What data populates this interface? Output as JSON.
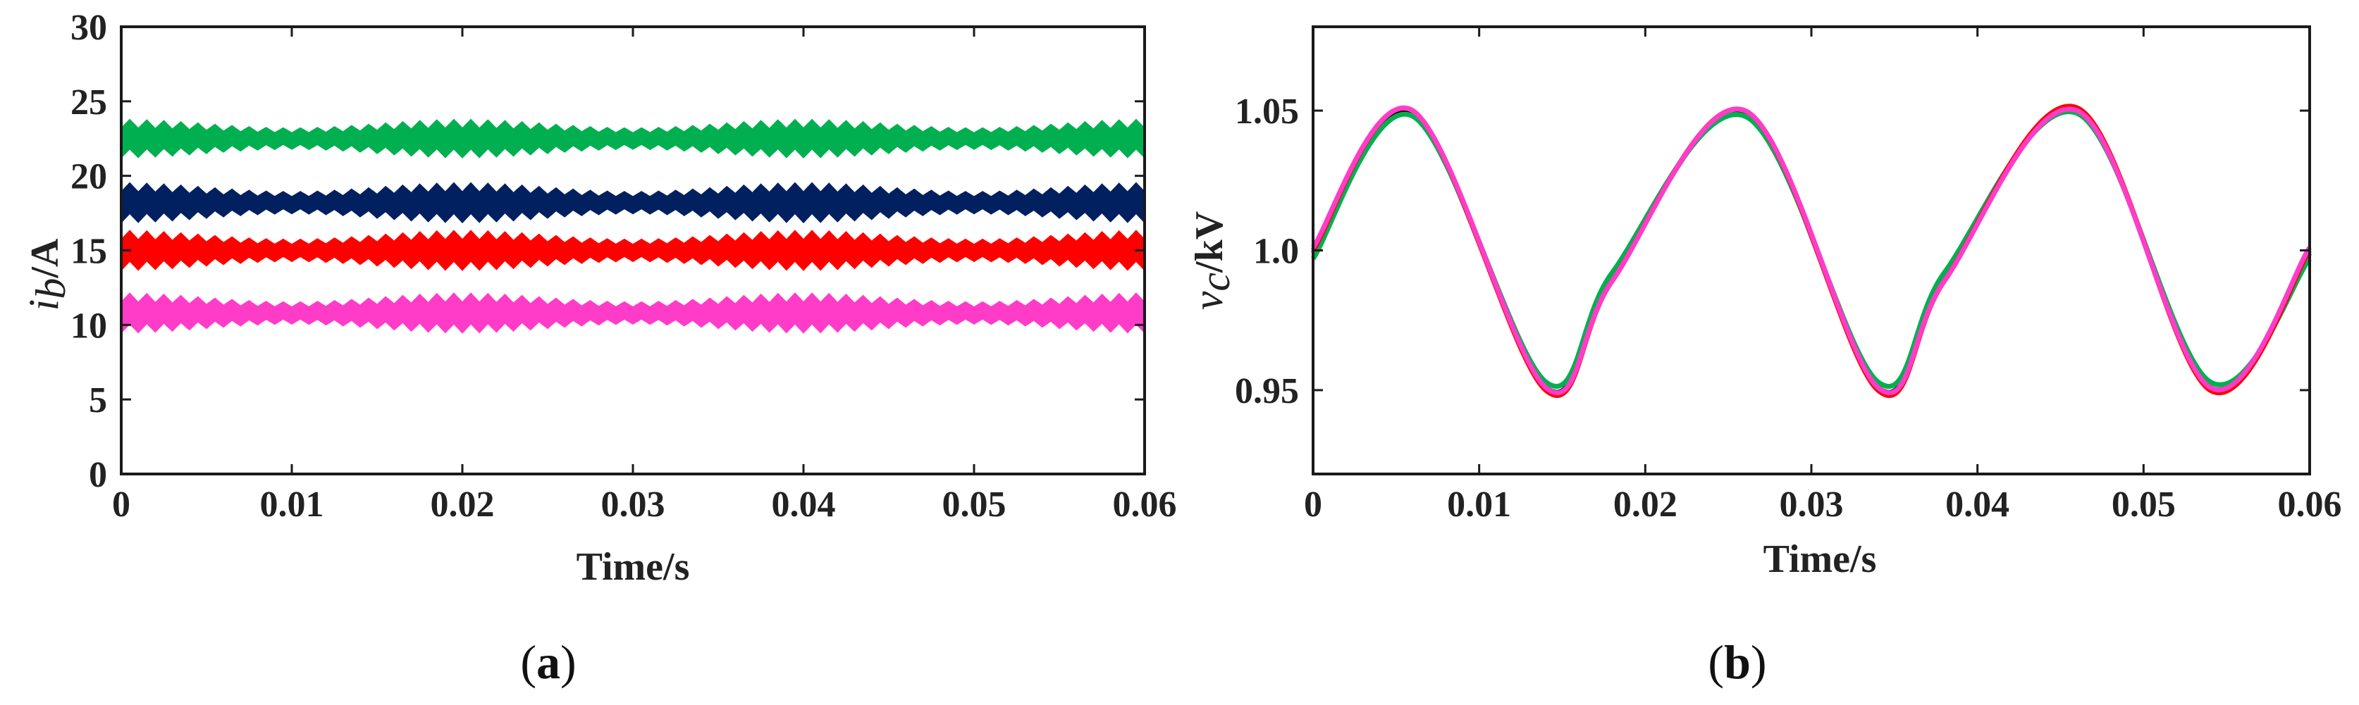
{
  "chart_data": [
    {
      "type": "line",
      "panel_label": "a",
      "ylabel_symbol": "i",
      "ylabel_subscript": "b",
      "ylabel_unit": "/A",
      "xlabel": "Time/s",
      "xlim": [
        0,
        0.06
      ],
      "ylim": [
        0,
        30
      ],
      "xticks": [
        0,
        0.01,
        0.02,
        0.03,
        0.04,
        0.05,
        0.06
      ],
      "xtick_labels": [
        "0",
        "0.01",
        "0.02",
        "0.03",
        "0.04",
        "0.05",
        "0.06"
      ],
      "yticks": [
        0,
        5,
        10,
        15,
        20,
        25,
        30
      ],
      "ytick_labels": [
        "0",
        "5",
        "10",
        "15",
        "20",
        "25",
        "30"
      ],
      "grid": false,
      "series": [
        {
          "color": "#00b050",
          "mean": 22.5,
          "ripple_low": 21.2,
          "ripple_high": 23.8
        },
        {
          "color": "#002060",
          "mean": 18.2,
          "ripple_low": 16.9,
          "ripple_high": 19.6
        },
        {
          "color": "#ff0000",
          "mean": 15.0,
          "ripple_low": 13.7,
          "ripple_high": 16.4
        },
        {
          "color": "#ff3cc8",
          "mean": 10.8,
          "ripple_low": 9.5,
          "ripple_high": 12.2
        }
      ]
    },
    {
      "type": "line",
      "panel_label": "b",
      "ylabel_symbol": "v",
      "ylabel_subscript": "c",
      "ylabel_unit": "/kV",
      "xlabel": "Time/s",
      "xlim": [
        0,
        0.06
      ],
      "ylim": [
        0.92,
        1.08
      ],
      "xticks": [
        0,
        0.01,
        0.02,
        0.03,
        0.04,
        0.05,
        0.06
      ],
      "xtick_labels": [
        "0",
        "0.01",
        "0.02",
        "0.03",
        "0.04",
        "0.05",
        "0.06"
      ],
      "yticks": [
        0.95,
        1.0,
        1.05
      ],
      "ytick_labels": [
        "0.95",
        "1.0",
        "1.05"
      ],
      "grid": false,
      "series": [
        {
          "color": "#000000",
          "x": [
            0,
            0.006,
            0.014,
            0.018,
            0.026,
            0.034,
            0.038,
            0.046,
            0.054,
            0.06
          ],
          "y": [
            0.999,
            1.049,
            0.951,
            0.99,
            1.049,
            0.951,
            0.99,
            1.05,
            0.951,
            0.999
          ]
        },
        {
          "color": "#00b050",
          "x": [
            0,
            0.006,
            0.014,
            0.018,
            0.026,
            0.034,
            0.038,
            0.046,
            0.054,
            0.06
          ],
          "y": [
            0.997,
            1.048,
            0.953,
            0.992,
            1.048,
            0.953,
            0.992,
            1.049,
            0.953,
            0.997
          ]
        },
        {
          "color": "#ff0000",
          "x": [
            0,
            0.006,
            0.014,
            0.018,
            0.026,
            0.034,
            0.038,
            0.046,
            0.054,
            0.06
          ],
          "y": [
            1.0,
            1.05,
            0.95,
            0.989,
            1.05,
            0.95,
            0.989,
            1.051,
            0.95,
            1.0
          ]
        },
        {
          "color": "#ff3cc8",
          "x": [
            0,
            0.006,
            0.014,
            0.018,
            0.026,
            0.034,
            0.038,
            0.046,
            0.054,
            0.06
          ],
          "y": [
            1.001,
            1.05,
            0.951,
            0.989,
            1.05,
            0.951,
            0.989,
            1.05,
            0.951,
            1.001
          ]
        }
      ]
    }
  ]
}
